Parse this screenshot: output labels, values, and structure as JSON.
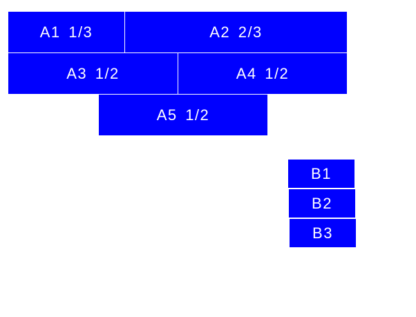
{
  "color": "#0000ff",
  "group_a": [
    {
      "label": "A1 1/3"
    },
    {
      "label": "A2 2/3"
    },
    {
      "label": "A3 1/2"
    },
    {
      "label": "A4 1/2"
    },
    {
      "label": "A5 1/2"
    }
  ],
  "group_b": [
    {
      "label": "B1"
    },
    {
      "label": "B2"
    },
    {
      "label": "B3"
    }
  ]
}
